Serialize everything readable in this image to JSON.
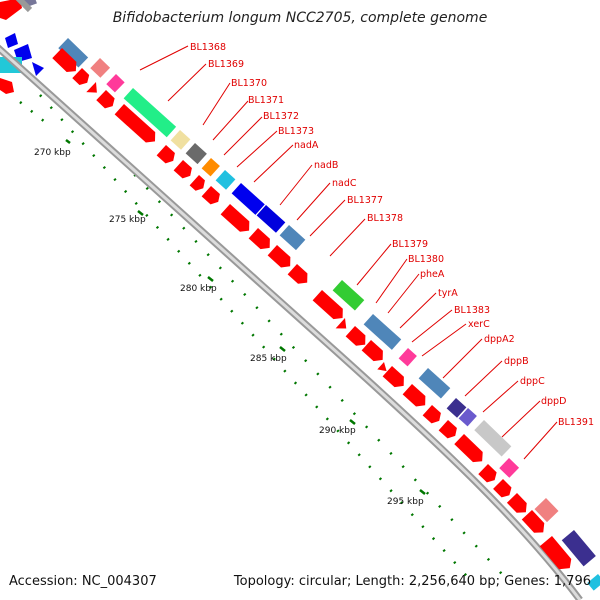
{
  "header": {
    "title": "Bifidobacterium longum NCC2705, complete genome"
  },
  "footer": {
    "accession": "Accession: NC_004307",
    "topology": "Topology: circular; Length: 2,256,640 bp; Genes: 1,796"
  },
  "scale": {
    "ticks": [
      {
        "label": "270 kbp"
      },
      {
        "label": "275 kbp"
      },
      {
        "label": "280 kbp"
      },
      {
        "label": "285 kbp"
      },
      {
        "label": "290 kbp"
      },
      {
        "label": "295 kbp"
      }
    ]
  },
  "gene_labels": [
    "BL1368",
    "BL1369",
    "BL1370",
    "BL1371",
    "BL1372",
    "BL1373",
    "nadA",
    "nadB",
    "nadC",
    "BL1377",
    "BL1378",
    "BL1379",
    "BL1380",
    "pheA",
    "tyrA",
    "BL1383",
    "xerC",
    "dppA2",
    "dppB",
    "dppC",
    "dppD",
    "BL1391"
  ],
  "legend_colors": {
    "label_text": "#e00000",
    "cds_arrow": "#ff0000",
    "tick": "#006600",
    "backbone": "#999999"
  }
}
